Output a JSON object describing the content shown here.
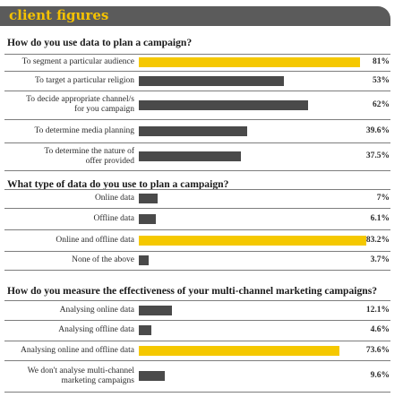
{
  "header": {
    "title": "client figures"
  },
  "colors": {
    "highlight": "#f5c800",
    "bar": "#4a4a4a",
    "header_bg": "#5b5b5b",
    "header_text": "#f5c200"
  },
  "chart_data": [
    {
      "type": "bar",
      "title": "How do you use data to plan a campaign?",
      "categories": [
        "To segment a particular audience",
        "To target a particular religion",
        "To decide appropriate channel/s\nfor you campaign",
        "To determine media planning",
        "To determine the nature of\noffer provided"
      ],
      "values": [
        81,
        53,
        62,
        39.6,
        37.5
      ],
      "labels": [
        "81%",
        "53%",
        "62%",
        "39.6%",
        "37.5%"
      ],
      "highlight_index": 0,
      "xlim": [
        0,
        100
      ]
    },
    {
      "type": "bar",
      "title": "What type of data do you use to plan a campaign?",
      "categories": [
        "Online data",
        "Offline data",
        "Online and offline data",
        "None of the above"
      ],
      "values": [
        7,
        6.1,
        83.2,
        3.7
      ],
      "labels": [
        "7%",
        "6.1%",
        "83.2%",
        "3.7%"
      ],
      "highlight_index": 2,
      "xlim": [
        0,
        100
      ]
    },
    {
      "type": "bar",
      "title": "How do you measure the effectiveness of your multi-channel marketing campaigns?",
      "categories": [
        "Analysing online data",
        "Analysing offline data",
        "Analysing online and offline data",
        "We don't analyse multi-channel\nmarketing campaigns"
      ],
      "values": [
        12.1,
        4.6,
        73.6,
        9.6
      ],
      "labels": [
        "12.1%",
        "4.6%",
        "73.6%",
        "9.6%"
      ],
      "highlight_index": 2,
      "xlim": [
        0,
        100
      ]
    }
  ]
}
